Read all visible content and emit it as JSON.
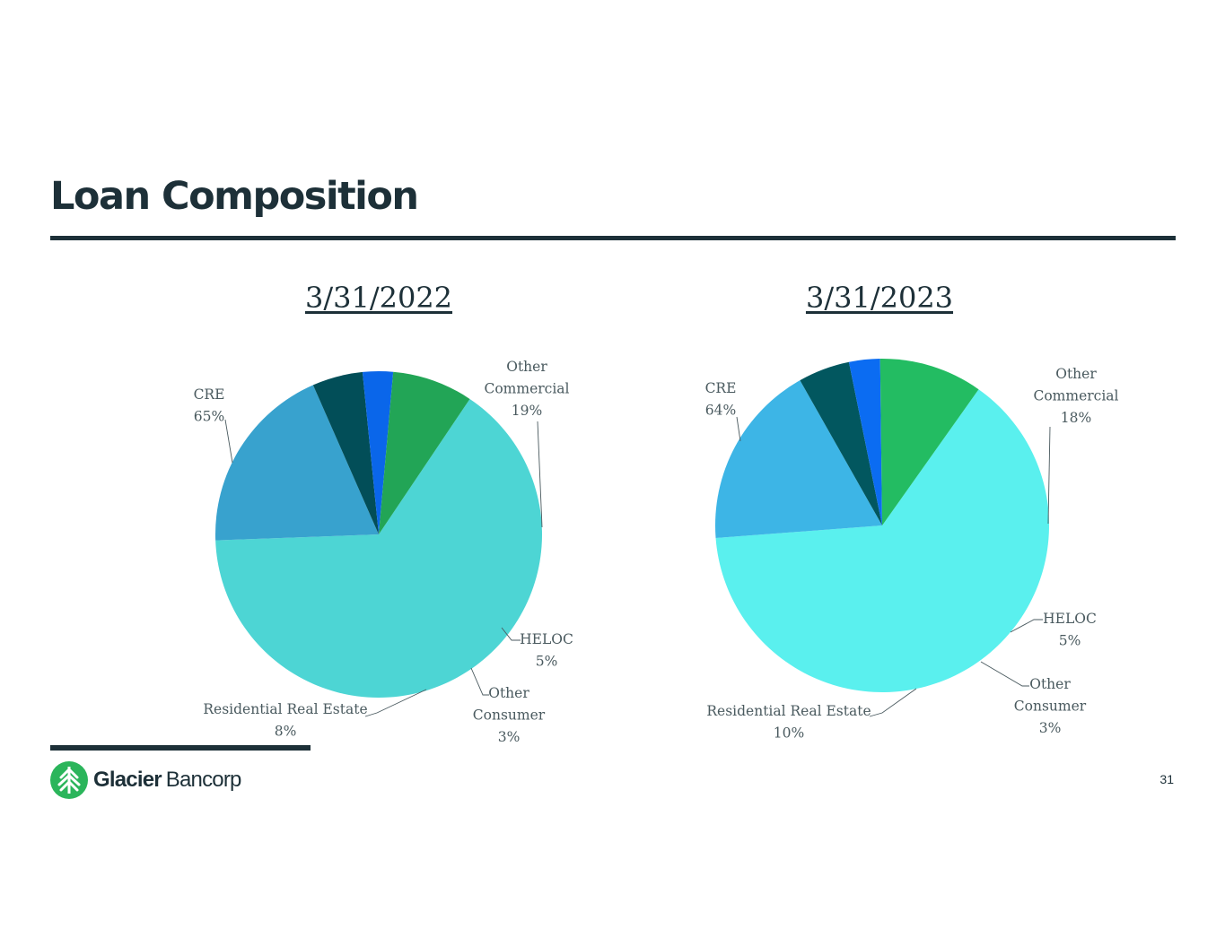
{
  "slide": {
    "title": "Loan Composition",
    "page_number": "31"
  },
  "logo": {
    "brand_bold": "Glacier",
    "brand_light": "Bancorp",
    "brand_color": "#2bb55b"
  },
  "chart_data": [
    {
      "type": "pie",
      "title": "3/31/2022",
      "slices": [
        {
          "name": "CRE",
          "label_lines": [
            "CRE",
            "65%"
          ],
          "value": 65,
          "color": "#4dd5d4"
        },
        {
          "name": "Other Commercial",
          "label_lines": [
            "Other",
            "Commercial",
            "19%"
          ],
          "value": 19,
          "color": "#38a2ce"
        },
        {
          "name": "HELOC",
          "label_lines": [
            "HELOC",
            "5%"
          ],
          "value": 5,
          "color": "#024e58"
        },
        {
          "name": "Other Consumer",
          "label_lines": [
            "Other",
            "Consumer",
            "3%"
          ],
          "value": 3,
          "color": "#0a66ea"
        },
        {
          "name": "Residential Real Estate",
          "label_lines": [
            "Residential Real Estate",
            "8%"
          ],
          "value": 8,
          "color": "#22a556"
        }
      ]
    },
    {
      "type": "pie",
      "title": "3/31/2023",
      "slices": [
        {
          "name": "CRE",
          "label_lines": [
            "CRE",
            "64%"
          ],
          "value": 64,
          "color": "#5af0ee"
        },
        {
          "name": "Other Commercial",
          "label_lines": [
            "Other",
            "Commercial",
            "18%"
          ],
          "value": 18,
          "color": "#3db5e6"
        },
        {
          "name": "HELOC",
          "label_lines": [
            "HELOC",
            "5%"
          ],
          "value": 5,
          "color": "#02575f"
        },
        {
          "name": "Other Consumer",
          "label_lines": [
            "Other",
            "Consumer",
            "3%"
          ],
          "value": 3,
          "color": "#0b6cf2"
        },
        {
          "name": "Residential Real Estate",
          "label_lines": [
            "Residential Real Estate",
            "10%"
          ],
          "value": 10,
          "color": "#23bc62"
        }
      ]
    }
  ]
}
